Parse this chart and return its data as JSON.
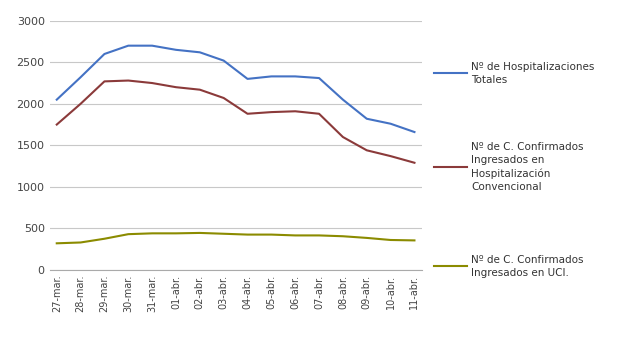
{
  "x_labels": [
    "27-mar.",
    "28-mar.",
    "29-mar.",
    "30-mar.",
    "31-mar.",
    "01-abr.",
    "02-abr.",
    "03-abr.",
    "04-abr.",
    "05-abr.",
    "06-abr.",
    "07-abr.",
    "08-abr.",
    "09-abr.",
    "10-abr.",
    "11-abr."
  ],
  "hospitalizaciones_totales": [
    2050,
    2320,
    2600,
    2700,
    2700,
    2650,
    2620,
    2520,
    2300,
    2330,
    2330,
    2310,
    2050,
    1820,
    1760,
    1660
  ],
  "confirmados_convencional": [
    1750,
    2000,
    2270,
    2280,
    2250,
    2200,
    2170,
    2070,
    1880,
    1900,
    1910,
    1880,
    1600,
    1440,
    1370,
    1290
  ],
  "confirmados_uci": [
    320,
    330,
    375,
    430,
    440,
    440,
    445,
    435,
    425,
    425,
    415,
    415,
    405,
    385,
    360,
    355
  ],
  "color_totales": "#4472C4",
  "color_convencional": "#8B3A3A",
  "color_uci": "#8B8B00",
  "ylim": [
    0,
    3000
  ],
  "yticks": [
    0,
    500,
    1000,
    1500,
    2000,
    2500,
    3000
  ],
  "legend_totales": "Nº de Hospitalizaciones\nTotales",
  "legend_convencional": "Nº de C. Confirmados\nIngresados en\nHospitalización\nConvencional",
  "legend_uci": "Nº de C. Confirmados\nIngresados en UCI.",
  "background_color": "#ffffff",
  "plot_area_color": "#ffffff",
  "grid_color": "#c8c8c8"
}
